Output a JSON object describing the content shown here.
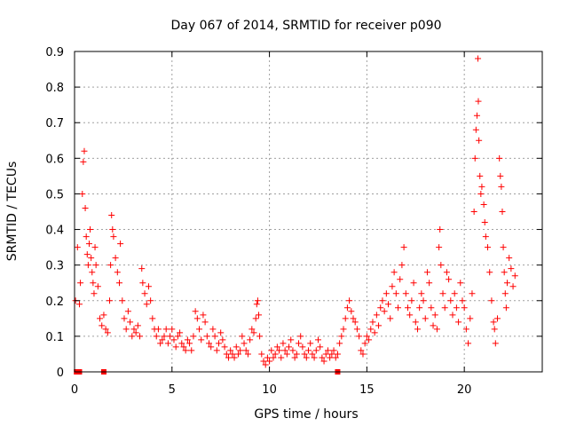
{
  "chart_data": {
    "type": "scatter",
    "title": "Day 067 of 2014, SRMTID for receiver p090",
    "xlabel": "GPS time / hours",
    "ylabel": "SRMTID / TECUs",
    "xlim": [
      0,
      24
    ],
    "ylim": [
      0,
      0.9
    ],
    "x_ticks": [
      0,
      5,
      10,
      15,
      20
    ],
    "y_ticks": [
      0,
      0.1,
      0.2,
      0.3,
      0.4,
      0.5,
      0.6,
      0.7,
      0.8,
      0.9
    ],
    "x_tick_labels": [
      "0",
      "5",
      "10",
      "15",
      "20"
    ],
    "y_tick_labels": [
      "0",
      "0.1",
      "0.2",
      "0.3",
      "0.4",
      "0.5",
      "0.6",
      "0.7",
      "0.8",
      "0.9"
    ],
    "grid": true,
    "marker": "plus",
    "color": "#ff0000",
    "series": [
      {
        "name": "SRMTID",
        "points": [
          [
            0.05,
            0.2
          ],
          [
            0.15,
            0.35
          ],
          [
            0.25,
            0.19
          ],
          [
            0.3,
            0.25
          ],
          [
            0.4,
            0.5
          ],
          [
            0.45,
            0.59
          ],
          [
            0.5,
            0.62
          ],
          [
            0.55,
            0.46
          ],
          [
            0.6,
            0.38
          ],
          [
            0.65,
            0.33
          ],
          [
            0.7,
            0.3
          ],
          [
            0.75,
            0.36
          ],
          [
            0.8,
            0.4
          ],
          [
            0.85,
            0.32
          ],
          [
            0.9,
            0.28
          ],
          [
            0.95,
            0.25
          ],
          [
            1.0,
            0.22
          ],
          [
            1.05,
            0.35
          ],
          [
            1.1,
            0.3
          ],
          [
            1.2,
            0.24
          ],
          [
            1.3,
            0.15
          ],
          [
            1.4,
            0.13
          ],
          [
            1.5,
            0.16
          ],
          [
            1.6,
            0.12
          ],
          [
            1.7,
            0.11
          ],
          [
            1.8,
            0.2
          ],
          [
            1.85,
            0.3
          ],
          [
            1.9,
            0.44
          ],
          [
            1.95,
            0.4
          ],
          [
            2.0,
            0.38
          ],
          [
            2.1,
            0.32
          ],
          [
            2.2,
            0.28
          ],
          [
            2.3,
            0.25
          ],
          [
            2.35,
            0.36
          ],
          [
            2.45,
            0.2
          ],
          [
            2.55,
            0.15
          ],
          [
            2.65,
            0.12
          ],
          [
            2.75,
            0.17
          ],
          [
            2.85,
            0.14
          ],
          [
            2.95,
            0.1
          ],
          [
            3.05,
            0.12
          ],
          [
            3.15,
            0.11
          ],
          [
            3.25,
            0.13
          ],
          [
            3.35,
            0.1
          ],
          [
            3.45,
            0.29
          ],
          [
            3.5,
            0.25
          ],
          [
            3.6,
            0.22
          ],
          [
            3.7,
            0.19
          ],
          [
            3.8,
            0.24
          ],
          [
            3.9,
            0.2
          ],
          [
            4.0,
            0.15
          ],
          [
            4.1,
            0.12
          ],
          [
            4.2,
            0.1
          ],
          [
            4.3,
            0.12
          ],
          [
            4.4,
            0.08
          ],
          [
            4.5,
            0.09
          ],
          [
            4.6,
            0.1
          ],
          [
            4.7,
            0.12
          ],
          [
            4.8,
            0.08
          ],
          [
            4.9,
            0.1
          ],
          [
            5.0,
            0.12
          ],
          [
            5.1,
            0.09
          ],
          [
            5.2,
            0.07
          ],
          [
            5.3,
            0.1
          ],
          [
            5.4,
            0.11
          ],
          [
            5.5,
            0.08
          ],
          [
            5.6,
            0.07
          ],
          [
            5.7,
            0.06
          ],
          [
            5.8,
            0.09
          ],
          [
            5.9,
            0.08
          ],
          [
            6.0,
            0.06
          ],
          [
            6.1,
            0.1
          ],
          [
            6.2,
            0.17
          ],
          [
            6.3,
            0.15
          ],
          [
            6.4,
            0.12
          ],
          [
            6.5,
            0.09
          ],
          [
            6.6,
            0.16
          ],
          [
            6.7,
            0.14
          ],
          [
            6.8,
            0.1
          ],
          [
            6.9,
            0.08
          ],
          [
            7.0,
            0.07
          ],
          [
            7.1,
            0.12
          ],
          [
            7.2,
            0.1
          ],
          [
            7.3,
            0.06
          ],
          [
            7.4,
            0.08
          ],
          [
            7.5,
            0.11
          ],
          [
            7.6,
            0.09
          ],
          [
            7.7,
            0.07
          ],
          [
            7.8,
            0.05
          ],
          [
            7.9,
            0.04
          ],
          [
            8.0,
            0.06
          ],
          [
            8.1,
            0.05
          ],
          [
            8.2,
            0.04
          ],
          [
            8.3,
            0.07
          ],
          [
            8.4,
            0.05
          ],
          [
            8.5,
            0.06
          ],
          [
            8.6,
            0.1
          ],
          [
            8.7,
            0.08
          ],
          [
            8.8,
            0.06
          ],
          [
            8.9,
            0.05
          ],
          [
            9.0,
            0.09
          ],
          [
            9.1,
            0.12
          ],
          [
            9.2,
            0.11
          ],
          [
            9.3,
            0.15
          ],
          [
            9.35,
            0.19
          ],
          [
            9.4,
            0.2
          ],
          [
            9.45,
            0.16
          ],
          [
            9.5,
            0.1
          ],
          [
            9.6,
            0.05
          ],
          [
            9.7,
            0.03
          ],
          [
            9.8,
            0.02
          ],
          [
            9.9,
            0.04
          ],
          [
            10.0,
            0.03
          ],
          [
            10.1,
            0.06
          ],
          [
            10.2,
            0.04
          ],
          [
            10.3,
            0.05
          ],
          [
            10.4,
            0.07
          ],
          [
            10.5,
            0.06
          ],
          [
            10.6,
            0.04
          ],
          [
            10.7,
            0.08
          ],
          [
            10.8,
            0.06
          ],
          [
            10.9,
            0.05
          ],
          [
            11.0,
            0.07
          ],
          [
            11.1,
            0.09
          ],
          [
            11.2,
            0.06
          ],
          [
            11.3,
            0.04
          ],
          [
            11.4,
            0.05
          ],
          [
            11.5,
            0.08
          ],
          [
            11.6,
            0.1
          ],
          [
            11.7,
            0.07
          ],
          [
            11.8,
            0.05
          ],
          [
            11.9,
            0.04
          ],
          [
            12.0,
            0.06
          ],
          [
            12.1,
            0.08
          ],
          [
            12.2,
            0.05
          ],
          [
            12.3,
            0.04
          ],
          [
            12.4,
            0.06
          ],
          [
            12.5,
            0.09
          ],
          [
            12.6,
            0.07
          ],
          [
            12.7,
            0.04
          ],
          [
            12.8,
            0.03
          ],
          [
            12.9,
            0.05
          ],
          [
            13.0,
            0.06
          ],
          [
            13.1,
            0.04
          ],
          [
            13.2,
            0.05
          ],
          [
            13.3,
            0.06
          ],
          [
            13.4,
            0.04
          ],
          [
            13.5,
            0.05
          ],
          [
            13.6,
            0.08
          ],
          [
            13.7,
            0.1
          ],
          [
            13.8,
            0.12
          ],
          [
            13.9,
            0.15
          ],
          [
            14.0,
            0.18
          ],
          [
            14.1,
            0.2
          ],
          [
            14.2,
            0.17
          ],
          [
            14.3,
            0.15
          ],
          [
            14.4,
            0.14
          ],
          [
            14.5,
            0.12
          ],
          [
            14.6,
            0.1
          ],
          [
            14.7,
            0.06
          ],
          [
            14.8,
            0.05
          ],
          [
            14.9,
            0.08
          ],
          [
            15.0,
            0.1
          ],
          [
            15.1,
            0.09
          ],
          [
            15.2,
            0.12
          ],
          [
            15.3,
            0.14
          ],
          [
            15.4,
            0.11
          ],
          [
            15.5,
            0.16
          ],
          [
            15.6,
            0.13
          ],
          [
            15.7,
            0.18
          ],
          [
            15.8,
            0.2
          ],
          [
            15.9,
            0.17
          ],
          [
            16.0,
            0.22
          ],
          [
            16.1,
            0.19
          ],
          [
            16.2,
            0.15
          ],
          [
            16.3,
            0.24
          ],
          [
            16.4,
            0.28
          ],
          [
            16.5,
            0.22
          ],
          [
            16.6,
            0.18
          ],
          [
            16.7,
            0.26
          ],
          [
            16.8,
            0.3
          ],
          [
            16.9,
            0.35
          ],
          [
            17.0,
            0.22
          ],
          [
            17.1,
            0.18
          ],
          [
            17.2,
            0.16
          ],
          [
            17.3,
            0.2
          ],
          [
            17.4,
            0.25
          ],
          [
            17.5,
            0.14
          ],
          [
            17.6,
            0.12
          ],
          [
            17.7,
            0.18
          ],
          [
            17.8,
            0.22
          ],
          [
            17.9,
            0.2
          ],
          [
            18.0,
            0.15
          ],
          [
            18.1,
            0.28
          ],
          [
            18.2,
            0.25
          ],
          [
            18.3,
            0.18
          ],
          [
            18.4,
            0.13
          ],
          [
            18.5,
            0.16
          ],
          [
            18.6,
            0.12
          ],
          [
            18.7,
            0.35
          ],
          [
            18.75,
            0.4
          ],
          [
            18.8,
            0.3
          ],
          [
            18.9,
            0.22
          ],
          [
            19.0,
            0.18
          ],
          [
            19.1,
            0.28
          ],
          [
            19.2,
            0.26
          ],
          [
            19.3,
            0.2
          ],
          [
            19.4,
            0.16
          ],
          [
            19.5,
            0.22
          ],
          [
            19.6,
            0.18
          ],
          [
            19.7,
            0.14
          ],
          [
            19.8,
            0.25
          ],
          [
            19.9,
            0.2
          ],
          [
            20.0,
            0.18
          ],
          [
            20.1,
            0.12
          ],
          [
            20.2,
            0.08
          ],
          [
            20.3,
            0.15
          ],
          [
            20.4,
            0.22
          ],
          [
            20.5,
            0.45
          ],
          [
            20.55,
            0.6
          ],
          [
            20.6,
            0.68
          ],
          [
            20.65,
            0.72
          ],
          [
            20.7,
            0.88
          ],
          [
            20.72,
            0.76
          ],
          [
            20.75,
            0.65
          ],
          [
            20.8,
            0.55
          ],
          [
            20.85,
            0.5
          ],
          [
            20.9,
            0.52
          ],
          [
            21.0,
            0.47
          ],
          [
            21.05,
            0.42
          ],
          [
            21.1,
            0.38
          ],
          [
            21.2,
            0.35
          ],
          [
            21.3,
            0.28
          ],
          [
            21.4,
            0.2
          ],
          [
            21.5,
            0.14
          ],
          [
            21.55,
            0.12
          ],
          [
            21.6,
            0.08
          ],
          [
            21.7,
            0.15
          ],
          [
            21.8,
            0.6
          ],
          [
            21.85,
            0.55
          ],
          [
            21.9,
            0.52
          ],
          [
            21.95,
            0.45
          ],
          [
            22.0,
            0.35
          ],
          [
            22.05,
            0.28
          ],
          [
            22.1,
            0.22
          ],
          [
            22.15,
            0.18
          ],
          [
            22.2,
            0.25
          ],
          [
            22.3,
            0.32
          ],
          [
            22.4,
            0.29
          ],
          [
            22.5,
            0.24
          ],
          [
            22.6,
            0.27
          ]
        ]
      }
    ],
    "gap_markers_x": [
      0.1,
      0.25,
      1.5,
      13.5
    ]
  }
}
